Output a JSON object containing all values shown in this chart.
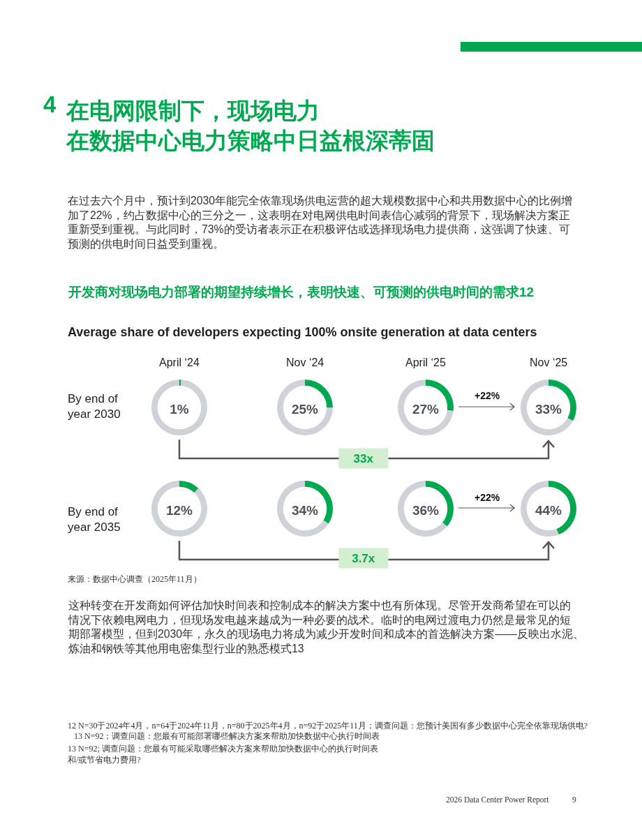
{
  "chart_data": [
    {
      "type": "other",
      "title": "在电网限制下，现场电力在数据中心电力策略中日益根深蒂固",
      "annotations": [
        "4",
        "在过去六个月中，预计到2030年能完全依靠现场供电运营的超大规模数据中心和共用数据中心的比例增加了22%，约占数据中心的三分之一，这表明在对电网供电时间表信心减弱的背景下，现场解决方案正重新受到重视。与此同时，73%的受访者表示正在积极评估或选择现场电力提供商，这强调了快速、可预测的供电时间日益受到重视。",
        "开发商对现场电力部署的期望持续增长，表明快速、可预测的供电时间的需求12",
        "Average share of developers expecting 100% onsite generation at data centers",
        "April ‘24",
        "Nov ‘24",
        "April ‘25",
        "Nov ‘25",
        "By end of year 2030",
        "By end of year 2035",
        "+22%",
        "+22%",
        "33x",
        "3.7x",
        "来源：数据中心调查（2025年11月）",
        "这种转变在开发商如何评估加快时间表和控制成本的解决方案中也有所体现。尽管开发商希望在可以的情况下依赖电网电力，但现场发电越来越成为一种必要的战术。临时的电网过渡电力仍然是最常见的短期部署模型，但到2030年，永久的现场电力将成为减少开发时间和成本的首选解决方案——反映出水泥、炼油和钢铁等其他用电密集型行业的熟悉模式13",
        "12 N=30于2024年4月，n=64于2024年11月，n=80于2025年4月，n=92于2025年11月；调查问题：您预计美国有多少数据中心完全依靠现场供电?",
        "13 N=92；调查问题：您最有可能部署哪些解决方案来帮助加快数据中心执行时间表",
        "13 N=92; 调查问题：您最有可能采取哪些解决方案来帮助加快数据中心的执行时间表和/或节省电力费用?",
        "2026 Data Center Power Report",
        "9"
      ]
    },
    {
      "type": "donut",
      "categories": [
        null,
        null
      ],
      "values": [
        1,
        99
      ],
      "colors": [
        "#00a94f",
        "#cfd2d8"
      ],
      "annotations": [
        "1%"
      ]
    },
    {
      "type": "donut",
      "categories": [
        null,
        null
      ],
      "values": [
        25,
        75
      ],
      "colors": [
        "#00a94f",
        "#cfd2d8"
      ],
      "annotations": [
        "25%"
      ]
    },
    {
      "type": "donut",
      "categories": [
        null,
        null
      ],
      "values": [
        27,
        73
      ],
      "colors": [
        "#00a94f",
        "#cfd2d8"
      ],
      "annotations": [
        "27%"
      ]
    },
    {
      "type": "donut",
      "categories": [
        null,
        null
      ],
      "values": [
        33,
        67
      ],
      "colors": [
        "#00a94f",
        "#cfd2d8"
      ],
      "annotations": [
        "33%"
      ]
    },
    {
      "type": "donut",
      "categories": [
        null,
        null
      ],
      "values": [
        12,
        88
      ],
      "colors": [
        "#00a94f",
        "#cfd2d8"
      ],
      "annotations": [
        "12%"
      ]
    },
    {
      "type": "donut",
      "categories": [
        null,
        null
      ],
      "values": [
        34,
        66
      ],
      "colors": [
        "#00a94f",
        "#cfd2d8"
      ],
      "annotations": [
        "34%"
      ]
    },
    {
      "type": "donut",
      "categories": [
        null,
        null
      ],
      "values": [
        36,
        64
      ],
      "colors": [
        "#00a94f",
        "#cfd2d8"
      ],
      "annotations": [
        "36%"
      ]
    },
    {
      "type": "donut",
      "categories": [
        null,
        null
      ],
      "values": [
        44,
        56
      ],
      "colors": [
        "#00a94f",
        "#cfd2d8"
      ],
      "annotations": [
        "44%"
      ]
    }
  ]
}
